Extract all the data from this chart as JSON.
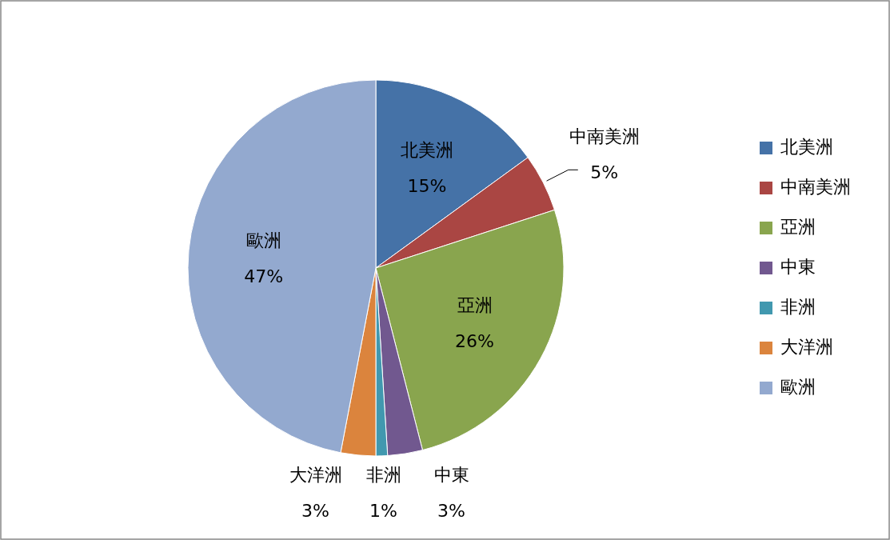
{
  "chart_data": {
    "type": "pie",
    "categories": [
      "北美洲",
      "中南美洲",
      "亞洲",
      "中東",
      "非洲",
      "大洋洲",
      "歐洲"
    ],
    "values": [
      15,
      5,
      26,
      3,
      1,
      3,
      47
    ],
    "colors": [
      "#4572a7",
      "#aa4643",
      "#89a54e",
      "#71588f",
      "#4198af",
      "#db843d",
      "#93a9cf"
    ],
    "value_labels": [
      "15%",
      "5%",
      "26%",
      "3%",
      "1%",
      "3%",
      "47%"
    ],
    "legend": "right"
  }
}
